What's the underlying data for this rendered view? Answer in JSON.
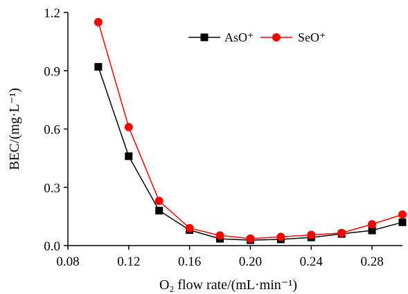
{
  "chart_data": {
    "type": "line",
    "x": [
      0.1,
      0.12,
      0.14,
      0.16,
      0.18,
      0.2,
      0.22,
      0.24,
      0.26,
      0.28,
      0.3
    ],
    "series": [
      {
        "name": "AsO⁺",
        "color": "#000000",
        "marker": "square",
        "values": [
          0.92,
          0.46,
          0.18,
          0.08,
          0.035,
          0.028,
          0.032,
          0.042,
          0.06,
          0.078,
          0.12
        ]
      },
      {
        "name": "SeO⁺",
        "color": "#ff0000",
        "marker": "circle",
        "values": [
          1.15,
          0.61,
          0.23,
          0.09,
          0.052,
          0.036,
          0.045,
          0.055,
          0.065,
          0.11,
          0.16
        ]
      }
    ],
    "xlim": [
      0.08,
      0.3
    ],
    "ylim": [
      0.0,
      1.2
    ],
    "xticks": [
      0.08,
      0.12,
      0.16,
      0.2,
      0.24,
      0.28
    ],
    "xtick_labels": [
      "0.08",
      "0.12",
      "0.16",
      "0.20",
      "0.24",
      "0.28"
    ],
    "yticks": [
      0.0,
      0.3,
      0.6,
      0.9,
      1.2
    ],
    "ytick_labels": [
      "0.0",
      "0.3",
      "0.6",
      "0.9",
      "1.2"
    ],
    "xlabel": "O₂ flow rate/(mL·min⁻¹)",
    "ylabel": "BEC/(mg·L⁻¹)",
    "title": "",
    "grid": false,
    "legend_position": "top-right"
  }
}
